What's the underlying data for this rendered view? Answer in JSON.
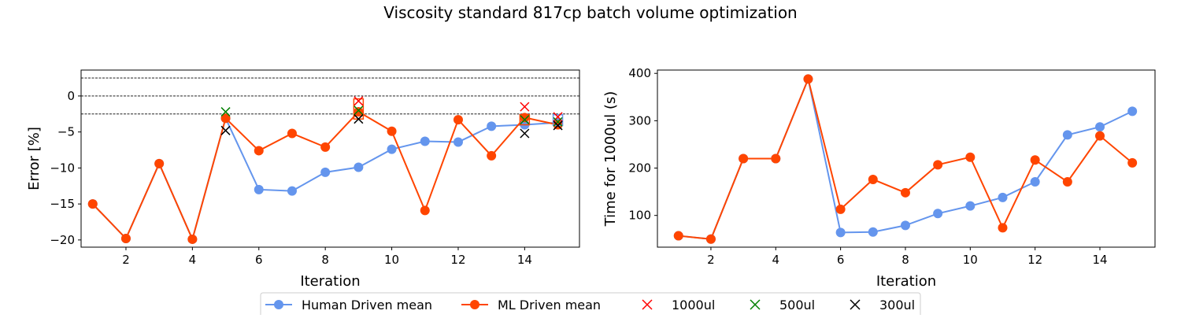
{
  "figure": {
    "title": "Viscosity standard 817cp batch volume optimization"
  },
  "legend": {
    "placement": "bottom-center",
    "entries": [
      {
        "label": "Human Driven mean",
        "marker": "circle-line",
        "color": "#6495ED"
      },
      {
        "label": "ML Driven mean",
        "marker": "circle-line",
        "color": "#FF4500"
      },
      {
        "label": "1000ul",
        "marker": "x",
        "color": "#FF0000"
      },
      {
        "label": "500ul",
        "marker": "x",
        "color": "#008000"
      },
      {
        "label": "300ul",
        "marker": "x",
        "color": "#000000"
      }
    ]
  },
  "chart_data": [
    {
      "type": "line",
      "title": "",
      "xlabel": "Iteration",
      "ylabel": "Error [%]",
      "xlim": [
        0.65,
        15.65
      ],
      "ylim": [
        -21,
        3.6
      ],
      "xticks": [
        2,
        4,
        6,
        8,
        10,
        12,
        14
      ],
      "yticks": [
        0,
        -5,
        -10,
        -15,
        -20
      ],
      "ytick_labels": [
        "0",
        "−5",
        "−10",
        "−15",
        "−20"
      ],
      "grid": false,
      "reference_lines": [
        2.5,
        0,
        -2.5
      ],
      "x": [
        1,
        2,
        3,
        4,
        5,
        6,
        7,
        8,
        9,
        10,
        11,
        12,
        13,
        14,
        15
      ],
      "series": [
        {
          "name": "Human Driven mean",
          "color": "#6495ED",
          "values": [
            -15,
            -19.8,
            -9.4,
            -19.9,
            -3.1,
            -13,
            -13.2,
            -10.6,
            -9.9,
            -7.4,
            -6.3,
            -6.4,
            -4.2,
            -4.0,
            -3.7
          ]
        },
        {
          "name": "ML Driven mean",
          "color": "#FF4500",
          "values": [
            -15,
            -19.8,
            -9.4,
            -19.9,
            -3.1,
            -7.6,
            -5.2,
            -7.1,
            -2.2,
            -4.9,
            -15.9,
            -3.3,
            -8.3,
            -3.0,
            -4.0
          ]
        }
      ],
      "volume_points": [
        {
          "volume": "1000ul",
          "color": "#FF0000",
          "points": [
            [
              9,
              -0.7
            ],
            [
              14,
              -1.5
            ],
            [
              15,
              -2.9
            ]
          ]
        },
        {
          "volume": "500ul",
          "color": "#008000",
          "points": [
            [
              5,
              -2.2
            ],
            [
              9,
              -2.0
            ],
            [
              14,
              -3.3
            ],
            [
              15,
              -3.6
            ]
          ]
        },
        {
          "volume": "300ul",
          "color": "#000000",
          "points": [
            [
              5,
              -4.8
            ],
            [
              9,
              -3.2
            ],
            [
              14,
              -5.2
            ],
            [
              15,
              -4.1
            ]
          ]
        }
      ],
      "highlight_boxes": [
        {
          "x": 9,
          "y": [
            -3.2,
            -0.4
          ],
          "color": "#FF4500"
        },
        {
          "x": 14,
          "y": [
            -4.0,
            -2.6
          ],
          "color": "#FF4500"
        },
        {
          "x": 15,
          "y": [
            -4.1,
            -2.6
          ],
          "color": "#6495ED"
        }
      ]
    },
    {
      "type": "line",
      "title": "",
      "xlabel": "Iteration",
      "ylabel": "Time for 1000ul (s)",
      "xlim": [
        0.35,
        15.7
      ],
      "ylim": [
        33,
        407
      ],
      "xticks": [
        2,
        4,
        6,
        8,
        10,
        12,
        14
      ],
      "yticks": [
        100,
        200,
        300,
        400
      ],
      "ytick_labels": [
        "100",
        "200",
        "300",
        "400"
      ],
      "grid": false,
      "x": [
        1,
        2,
        3,
        4,
        5,
        6,
        7,
        8,
        9,
        10,
        11,
        12,
        13,
        14,
        15
      ],
      "series": [
        {
          "name": "Human Driven mean",
          "color": "#6495ED",
          "values": [
            57,
            50,
            220,
            220,
            388,
            64,
            65,
            79,
            104,
            120,
            138,
            171,
            270,
            287,
            320
          ]
        },
        {
          "name": "ML Driven mean",
          "color": "#FF4500",
          "values": [
            57,
            50,
            220,
            220,
            388,
            113,
            176,
            148,
            207,
            223,
            74,
            217,
            171,
            268,
            211
          ]
        }
      ]
    }
  ]
}
